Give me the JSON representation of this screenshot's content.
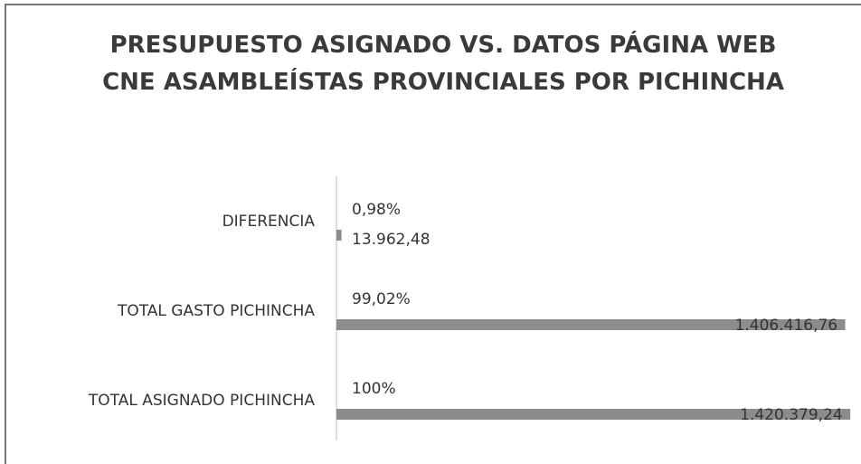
{
  "chart_data": {
    "type": "hbar",
    "title": "PRESUPUESTO ASIGNADO VS. DATOS PÁGINA WEB CNE ASAMBLEÍSTAS PROVINCIALES POR PICHINCHA",
    "categories": [
      "DIFERENCIA",
      "TOTAL GASTO PICHINCHA",
      "TOTAL ASIGNADO PICHINCHA"
    ],
    "series": [
      {
        "color": "#8c8c8c",
        "values": [
          13962.48,
          1406416.76,
          1420379.24
        ],
        "value_labels": [
          "13.962,48",
          "1.406.416,76",
          "1.420.379,24"
        ]
      },
      {
        "color": "#8c8c8c",
        "values": [
          0.98,
          99.02,
          100
        ],
        "value_labels": [
          "0,98%",
          "99,02%",
          "100%"
        ]
      }
    ],
    "xlim": [
      0,
      1450000
    ]
  }
}
